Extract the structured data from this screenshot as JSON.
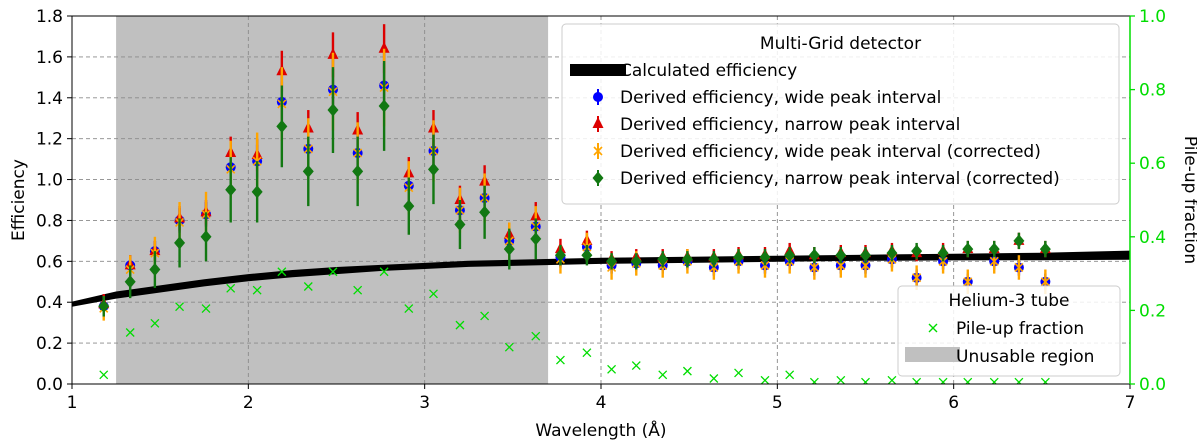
{
  "chart_data": {
    "type": "scatter",
    "xlabel": "Wavelength (Å)",
    "ylabel": "Efficiency",
    "y2label": "Pile-up fraction",
    "xlim": [
      1,
      7
    ],
    "ylim": [
      0,
      1.8
    ],
    "y2lim": [
      0,
      1.0
    ],
    "x_ticks": [
      "1",
      "2",
      "3",
      "4",
      "5",
      "6",
      "7"
    ],
    "y_ticks": [
      "0.0",
      "0.2",
      "0.4",
      "0.6",
      "0.8",
      "1.0",
      "1.2",
      "1.4",
      "1.6",
      "1.8"
    ],
    "y2_ticks": [
      "0.0",
      "0.2",
      "0.4",
      "0.6",
      "0.8",
      "1.0"
    ],
    "grid": true,
    "colors": {
      "wide": "#0000ff",
      "narrow": "#dd0000",
      "wide_corrected": "#ffa500",
      "narrow_corrected": "#127812",
      "pileup": "#00dd00",
      "unusable": "#c0c0c0",
      "calculated": "#000000",
      "right_axis": "#00dd00"
    },
    "unusable_region": [
      1.25,
      3.7
    ],
    "legend_multigrid": {
      "title": "Multi-Grid detector",
      "position": "top-right",
      "entries": [
        "Calculated efficiency",
        "Derived efficiency, wide peak interval",
        "Derived efficiency, narrow peak interval",
        "Derived efficiency, wide peak interval (corrected)",
        "Derived efficiency, narrow peak interval (corrected)"
      ]
    },
    "legend_he3": {
      "title": "Helium-3 tube",
      "position": "lower-right",
      "entries": [
        "Pile-up fraction",
        "Unusable region"
      ]
    },
    "calculated_efficiency": {
      "x": [
        1.0,
        1.25,
        1.5,
        1.75,
        2.0,
        2.25,
        2.5,
        2.75,
        3.0,
        3.25,
        3.5,
        3.75,
        4.0,
        4.5,
        5.0,
        5.5,
        6.0,
        6.5,
        7.0
      ],
      "upper": [
        0.4,
        0.45,
        0.48,
        0.51,
        0.535,
        0.555,
        0.57,
        0.58,
        0.59,
        0.6,
        0.605,
        0.61,
        0.615,
        0.62,
        0.625,
        0.63,
        0.635,
        0.64,
        0.65
      ],
      "lower": [
        0.38,
        0.42,
        0.45,
        0.48,
        0.505,
        0.525,
        0.54,
        0.555,
        0.565,
        0.575,
        0.58,
        0.585,
        0.59,
        0.595,
        0.6,
        0.605,
        0.607,
        0.608,
        0.61
      ]
    },
    "x": [
      1.18,
      1.33,
      1.47,
      1.61,
      1.76,
      1.9,
      2.05,
      2.19,
      2.34,
      2.48,
      2.62,
      2.77,
      2.91,
      3.05,
      3.2,
      3.34,
      3.48,
      3.63,
      3.77,
      3.92,
      4.06,
      4.2,
      4.35,
      4.49,
      4.64,
      4.78,
      4.93,
      5.07,
      5.21,
      5.36,
      5.5,
      5.65,
      5.79,
      5.94,
      6.08,
      6.23,
      6.37,
      6.52
    ],
    "series": [
      {
        "name": "Derived efficiency, wide peak interval",
        "marker": "circle",
        "values": [
          0.38,
          0.58,
          0.65,
          0.8,
          0.83,
          1.06,
          1.09,
          1.38,
          1.15,
          1.44,
          1.13,
          1.46,
          0.97,
          1.14,
          0.85,
          0.91,
          0.7,
          0.77,
          0.62,
          0.67,
          0.58,
          0.59,
          0.58,
          0.6,
          0.57,
          0.6,
          0.58,
          0.6,
          0.57,
          0.58,
          0.58,
          0.61,
          0.52,
          0.6,
          0.5,
          0.6,
          0.57,
          0.5
        ],
        "errors": [
          0.05,
          0.05,
          0.05,
          0.06,
          0.06,
          0.08,
          0.08,
          0.1,
          0.09,
          0.1,
          0.09,
          0.11,
          0.08,
          0.09,
          0.07,
          0.08,
          0.06,
          0.07,
          0.05,
          0.05,
          0.04,
          0.04,
          0.04,
          0.04,
          0.04,
          0.04,
          0.04,
          0.04,
          0.04,
          0.04,
          0.04,
          0.04,
          0.04,
          0.04,
          0.04,
          0.04,
          0.04,
          0.04
        ]
      },
      {
        "name": "Derived efficiency, narrow peak interval",
        "marker": "triangle",
        "values": [
          0.39,
          0.58,
          0.65,
          0.81,
          0.84,
          1.13,
          1.12,
          1.53,
          1.25,
          1.61,
          1.24,
          1.64,
          1.03,
          1.25,
          0.9,
          0.99,
          0.73,
          0.82,
          0.66,
          0.7,
          0.61,
          0.62,
          0.62,
          0.62,
          0.62,
          0.63,
          0.63,
          0.65,
          0.63,
          0.64,
          0.64,
          0.65,
          0.64,
          0.65,
          0.66,
          0.66,
          0.7,
          0.66
        ],
        "errors": [
          0.05,
          0.05,
          0.05,
          0.06,
          0.06,
          0.08,
          0.08,
          0.1,
          0.09,
          0.11,
          0.09,
          0.12,
          0.08,
          0.09,
          0.07,
          0.08,
          0.06,
          0.07,
          0.05,
          0.05,
          0.04,
          0.04,
          0.04,
          0.04,
          0.04,
          0.04,
          0.04,
          0.04,
          0.04,
          0.04,
          0.04,
          0.04,
          0.04,
          0.04,
          0.04,
          0.04,
          0.04,
          0.04
        ]
      },
      {
        "name": "Derived efficiency, wide peak interval (corrected)",
        "marker": "cross",
        "values": [
          0.37,
          0.56,
          0.64,
          0.79,
          0.83,
          1.05,
          1.09,
          1.37,
          1.15,
          1.43,
          1.13,
          1.45,
          0.96,
          1.14,
          0.85,
          0.91,
          0.7,
          0.77,
          0.61,
          0.67,
          0.57,
          0.59,
          0.58,
          0.6,
          0.57,
          0.6,
          0.58,
          0.6,
          0.57,
          0.58,
          0.58,
          0.61,
          0.52,
          0.6,
          0.5,
          0.6,
          0.57,
          0.5
        ],
        "errors": [
          0.06,
          0.07,
          0.08,
          0.1,
          0.11,
          0.14,
          0.14,
          0.18,
          0.15,
          0.19,
          0.15,
          0.19,
          0.13,
          0.15,
          0.11,
          0.12,
          0.09,
          0.1,
          0.07,
          0.07,
          0.06,
          0.06,
          0.06,
          0.06,
          0.06,
          0.06,
          0.06,
          0.06,
          0.06,
          0.06,
          0.06,
          0.06,
          0.06,
          0.06,
          0.06,
          0.06,
          0.06,
          0.06
        ]
      },
      {
        "name": "Derived efficiency, narrow peak interval (corrected)",
        "marker": "diamond",
        "values": [
          0.38,
          0.5,
          0.56,
          0.69,
          0.72,
          0.95,
          0.94,
          1.26,
          1.04,
          1.34,
          1.04,
          1.36,
          0.87,
          1.05,
          0.78,
          0.84,
          0.66,
          0.71,
          0.63,
          0.63,
          0.6,
          0.6,
          0.61,
          0.61,
          0.61,
          0.62,
          0.62,
          0.63,
          0.63,
          0.63,
          0.63,
          0.64,
          0.65,
          0.64,
          0.66,
          0.66,
          0.7,
          0.66
        ],
        "errors": [
          0.05,
          0.08,
          0.09,
          0.12,
          0.12,
          0.16,
          0.15,
          0.2,
          0.17,
          0.21,
          0.17,
          0.22,
          0.14,
          0.17,
          0.12,
          0.13,
          0.1,
          0.1,
          0.05,
          0.05,
          0.04,
          0.04,
          0.04,
          0.04,
          0.04,
          0.04,
          0.04,
          0.04,
          0.04,
          0.04,
          0.04,
          0.04,
          0.04,
          0.04,
          0.04,
          0.04,
          0.04,
          0.04
        ]
      },
      {
        "name": "Pile-up fraction",
        "marker": "x",
        "axis": "right",
        "values": [
          0.025,
          0.14,
          0.165,
          0.21,
          0.205,
          0.26,
          0.255,
          0.305,
          0.265,
          0.305,
          0.255,
          0.305,
          0.205,
          0.245,
          0.16,
          0.185,
          0.1,
          0.13,
          0.065,
          0.085,
          0.04,
          0.05,
          0.025,
          0.035,
          0.015,
          0.03,
          0.01,
          0.025,
          0.005,
          0.01,
          0.005,
          0.01,
          0.005,
          0.005,
          0.005,
          0.005,
          0.005,
          0.005
        ]
      }
    ]
  }
}
